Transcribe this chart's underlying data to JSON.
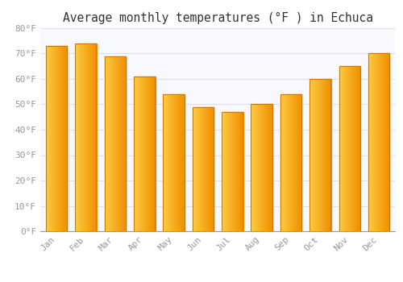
{
  "title": "Average monthly temperatures (°F ) in Echuca",
  "months": [
    "Jan",
    "Feb",
    "Mar",
    "Apr",
    "May",
    "Jun",
    "Jul",
    "Aug",
    "Sep",
    "Oct",
    "Nov",
    "Dec"
  ],
  "values": [
    73,
    74,
    69,
    61,
    54,
    49,
    47,
    50,
    54,
    60,
    65,
    70
  ],
  "bar_color_left": "#FFCC44",
  "bar_color_right": "#F5A000",
  "bar_edge_color": "#CC7700",
  "ylim": [
    0,
    80
  ],
  "yticks": [
    0,
    10,
    20,
    30,
    40,
    50,
    60,
    70,
    80
  ],
  "ytick_labels": [
    "0°F",
    "10°F",
    "20°F",
    "30°F",
    "40°F",
    "50°F",
    "60°F",
    "70°F",
    "80°F"
  ],
  "background_color": "#FFFFFF",
  "plot_bg_color": "#F8F8FF",
  "grid_color": "#E0E0E8",
  "title_fontsize": 10.5,
  "tick_fontsize": 8,
  "tick_color": "#999999"
}
